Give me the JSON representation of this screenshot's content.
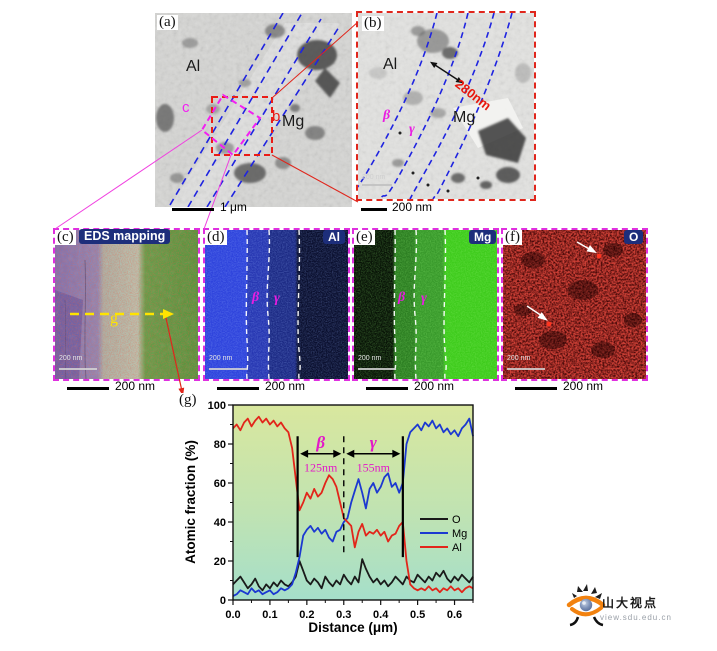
{
  "figure": {
    "panel_a": {
      "label": "(a)",
      "region_al": "Al",
      "region_mg": "Mg",
      "inset_b": "b",
      "inset_c": "c",
      "scale_bar": "1 μm"
    },
    "panel_b": {
      "label": "(b)",
      "region_al": "Al",
      "region_mg": "Mg",
      "beta": "β",
      "gamma": "γ",
      "band_width": "280nm",
      "inner_scale": "200 nm",
      "scale_bar": "200 nm"
    },
    "panel_c": {
      "label": "(c)",
      "title": "EDS mapping",
      "line_label": "g",
      "inner_scale": "200 nm",
      "scale_bar": "200 nm"
    },
    "panel_d": {
      "label": "(d)",
      "element": "Al",
      "beta": "β",
      "gamma": "γ",
      "inner_scale": "200 nm",
      "scale_bar": "200 nm"
    },
    "panel_e": {
      "label": "(e)",
      "element": "Mg",
      "beta": "β",
      "gamma": "γ",
      "inner_scale": "200 nm",
      "scale_bar": "200 nm"
    },
    "panel_f": {
      "label": "(f)",
      "element": "O",
      "inner_scale": "200 nm",
      "scale_bar": "200 nm"
    },
    "panel_g": {
      "label": "(g)"
    }
  },
  "chart_data": {
    "type": "line",
    "title": "",
    "xlabel": "Distance (μm)",
    "ylabel": "Atomic fraction (%)",
    "xlim": [
      0,
      0.65
    ],
    "ylim": [
      0,
      100
    ],
    "xticks": [
      0,
      0.1,
      0.2,
      0.3,
      0.4,
      0.5,
      0.6
    ],
    "yticks": [
      0,
      20,
      40,
      60,
      80,
      100
    ],
    "x_start": 0,
    "x_step": 0.01,
    "grid": false,
    "background_gradient": [
      "#d9e79e",
      "#c0e3b2",
      "#a5dfca"
    ],
    "legend": {
      "position": "middle-right",
      "entries": [
        "O",
        "Mg",
        "Al"
      ]
    },
    "series": [
      {
        "name": "O",
        "color": "#1a1a1a",
        "values": [
          8,
          10,
          12,
          9,
          6,
          8,
          11,
          7,
          5,
          8,
          6,
          9,
          7,
          10,
          8,
          7,
          9,
          12,
          20,
          15,
          10,
          8,
          11,
          9,
          6,
          12,
          9,
          7,
          10,
          8,
          13,
          10,
          8,
          12,
          9,
          21,
          16,
          12,
          9,
          11,
          8,
          10,
          7,
          9,
          12,
          10,
          8,
          12,
          10,
          9,
          13,
          11,
          9,
          12,
          10,
          14,
          12,
          15,
          11,
          9,
          12,
          10,
          13,
          11,
          9,
          12
        ]
      },
      {
        "name": "Mg",
        "color": "#1c39d1",
        "values": [
          2,
          3,
          5,
          4,
          3,
          6,
          4,
          5,
          3,
          4,
          5,
          3,
          4,
          6,
          5,
          6,
          8,
          14,
          22,
          33,
          36,
          38,
          35,
          37,
          34,
          36,
          32,
          30,
          35,
          36,
          40,
          42,
          50,
          56,
          62,
          55,
          47,
          57,
          60,
          55,
          58,
          63,
          65,
          58,
          60,
          55,
          60,
          80,
          86,
          88,
          90,
          87,
          91,
          89,
          92,
          88,
          90,
          86,
          88,
          85,
          87,
          84,
          88,
          90,
          93,
          84
        ]
      },
      {
        "name": "Al",
        "color": "#e2251a",
        "values": [
          88,
          90,
          87,
          91,
          93,
          89,
          92,
          94,
          91,
          93,
          90,
          92,
          89,
          91,
          88,
          86,
          78,
          62,
          46,
          50,
          55,
          52,
          57,
          53,
          55,
          60,
          64,
          62,
          58,
          50,
          42,
          40,
          38,
          27,
          35,
          39,
          33,
          35,
          34,
          36,
          33,
          35,
          30,
          33,
          34,
          38,
          40,
          20,
          8,
          6,
          5,
          6,
          5,
          7,
          5,
          6,
          4,
          6,
          5,
          7,
          5,
          6,
          4,
          6,
          7,
          6
        ]
      }
    ],
    "annotations": {
      "beta_label": "β",
      "gamma_label": "γ",
      "beta_width_label": "125nm",
      "gamma_width_label": "155nm",
      "region_bounds_um": [
        0.175,
        0.3,
        0.46
      ],
      "marker_y_range_pct": [
        22,
        84
      ],
      "arrow_y_pct": 75,
      "label_color": "#e318c8"
    }
  },
  "watermark": {
    "title": "山大视点",
    "subtitle": "view.sdu.edu.cn"
  }
}
